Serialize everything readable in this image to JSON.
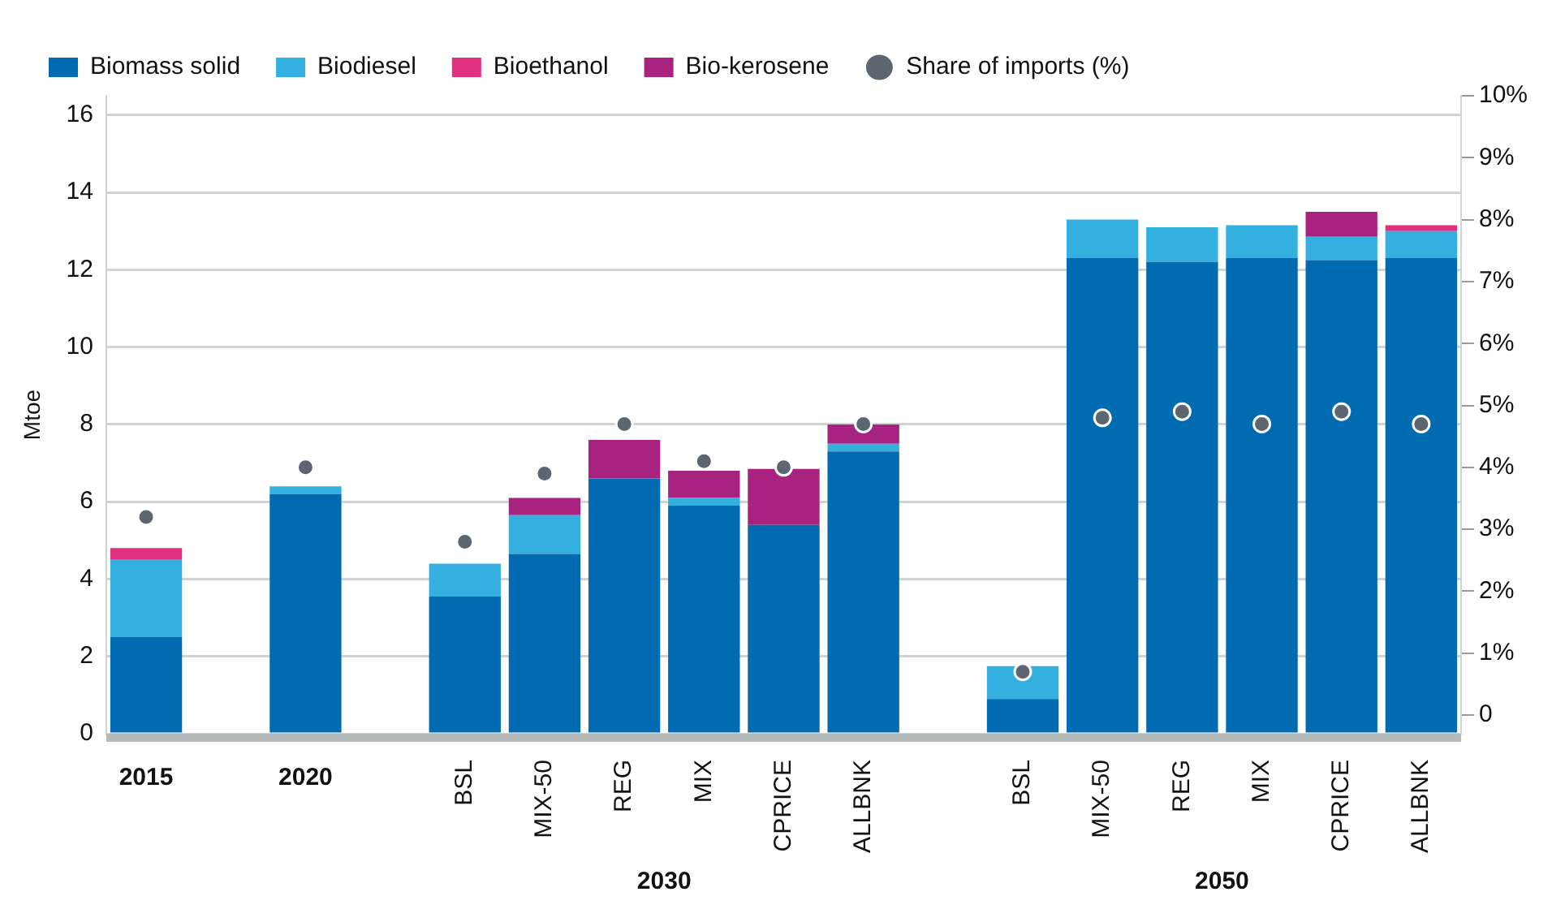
{
  "chart_data": {
    "type": "bar",
    "stacked": true,
    "ylabel": "Mtoe",
    "categories": [
      "2015",
      null,
      "2020",
      null,
      "BSL",
      "MIX-50",
      "REG",
      "MIX",
      "CPRICE",
      "ALLBNK",
      null,
      "BSL",
      "MIX-50",
      "REG",
      "MIX",
      "CPRICE",
      "ALLBNK"
    ],
    "series": [
      {
        "name": "Biomass solid",
        "color": "#006bb0",
        "values": [
          2.5,
          null,
          6.2,
          null,
          3.55,
          4.65,
          6.6,
          5.9,
          5.4,
          7.3,
          null,
          0.9,
          12.3,
          12.2,
          12.3,
          12.25,
          12.3
        ]
      },
      {
        "name": "Biodiesel",
        "color": "#33b0e0",
        "values": [
          2.0,
          null,
          0.2,
          null,
          0.85,
          1.0,
          null,
          0.2,
          null,
          0.2,
          null,
          0.85,
          1.0,
          0.9,
          0.85,
          0.6,
          0.7
        ]
      },
      {
        "name": "Bioethanol",
        "color": "#e0307f",
        "values": [
          0.3,
          null,
          null,
          null,
          null,
          null,
          null,
          null,
          null,
          null,
          null,
          null,
          null,
          null,
          null,
          null,
          0.15
        ]
      },
      {
        "name": "Bio-kerosene",
        "color": "#a8237f",
        "values": [
          null,
          null,
          null,
          null,
          null,
          0.45,
          1.0,
          0.7,
          1.45,
          0.5,
          null,
          null,
          null,
          null,
          null,
          0.65,
          null
        ]
      },
      {
        "name": "Share of imports (%)",
        "type": "scatter",
        "axis": "y2",
        "color": "#5c6670",
        "values": [
          3.2,
          null,
          4.0,
          null,
          2.8,
          3.9,
          4.7,
          4.1,
          4.0,
          4.7,
          null,
          0.7,
          4.8,
          4.9,
          4.7,
          4.9,
          4.7
        ]
      }
    ],
    "ylim": [
      0,
      16.5
    ],
    "yticks": [
      0,
      2,
      4,
      6,
      8,
      10,
      12,
      14,
      16
    ],
    "y2lim": [
      -0.3,
      10
    ],
    "y2ticks": [
      0,
      {
        "value": 1,
        "label": "1%"
      },
      {
        "value": 2,
        "label": "2%"
      },
      {
        "value": 3,
        "label": "3%"
      },
      {
        "value": 4,
        "label": "4%"
      },
      {
        "value": 5,
        "label": "5%"
      },
      {
        "value": 6,
        "label": "6%"
      },
      {
        "value": 7,
        "label": "7%"
      },
      {
        "value": 8,
        "label": "8%"
      },
      {
        "value": 9,
        "label": "9%"
      },
      {
        "value": 10,
        "label": "10%"
      }
    ],
    "annotations": [
      "2030",
      "2050"
    ],
    "grid": "y",
    "legend": "top",
    "marker": "circle"
  }
}
